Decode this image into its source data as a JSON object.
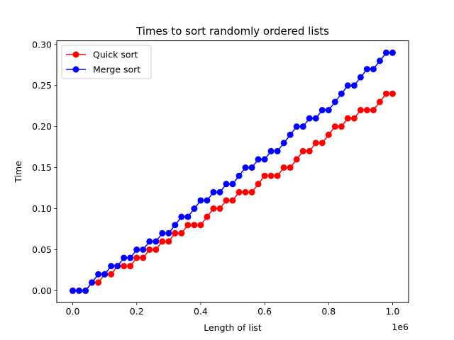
{
  "chart_data": {
    "type": "line",
    "title": "Times to sort randomly ordered lists",
    "xlabel": "Length of list",
    "ylabel": "Time",
    "x_offset_text": "1e6",
    "xlim": [
      -0.05,
      1.05
    ],
    "ylim": [
      -0.0145,
      0.3045
    ],
    "x_scale": 1000000,
    "x_ticks": [
      0.0,
      0.2,
      0.4,
      0.6,
      0.8,
      1.0
    ],
    "x_tick_labels": [
      "0.0",
      "0.2",
      "0.4",
      "0.6",
      "0.8",
      "1.0"
    ],
    "y_ticks": [
      0.0,
      0.05,
      0.1,
      0.15,
      0.2,
      0.25,
      0.3
    ],
    "y_tick_labels": [
      "0.00",
      "0.05",
      "0.10",
      "0.15",
      "0.20",
      "0.25",
      "0.30"
    ],
    "grid": false,
    "legend_position": "upper-left",
    "x": [
      0,
      20000,
      40000,
      60000,
      80000,
      100000,
      120000,
      140000,
      160000,
      180000,
      200000,
      220000,
      240000,
      260000,
      280000,
      300000,
      320000,
      340000,
      360000,
      380000,
      400000,
      420000,
      440000,
      460000,
      480000,
      500000,
      520000,
      540000,
      560000,
      580000,
      600000,
      620000,
      640000,
      660000,
      680000,
      700000,
      720000,
      740000,
      760000,
      780000,
      800000,
      820000,
      840000,
      860000,
      880000,
      900000,
      920000,
      940000,
      960000,
      980000,
      1000000
    ],
    "series": [
      {
        "name": "Quick sort",
        "color": "#ff0000",
        "values": [
          0.0,
          0.0,
          0.0,
          0.01,
          0.01,
          0.02,
          0.02,
          0.03,
          0.03,
          0.03,
          0.04,
          0.04,
          0.05,
          0.05,
          0.06,
          0.06,
          0.07,
          0.07,
          0.08,
          0.08,
          0.08,
          0.09,
          0.1,
          0.1,
          0.11,
          0.11,
          0.12,
          0.12,
          0.12,
          0.13,
          0.14,
          0.14,
          0.14,
          0.15,
          0.15,
          0.16,
          0.17,
          0.17,
          0.18,
          0.18,
          0.19,
          0.2,
          0.2,
          0.21,
          0.21,
          0.22,
          0.22,
          0.22,
          0.23,
          0.24,
          0.24
        ]
      },
      {
        "name": "Merge sort",
        "color": "#0000ff",
        "values": [
          0.0,
          0.0,
          0.0,
          0.01,
          0.02,
          0.02,
          0.03,
          0.03,
          0.04,
          0.04,
          0.05,
          0.05,
          0.06,
          0.06,
          0.07,
          0.07,
          0.08,
          0.09,
          0.09,
          0.1,
          0.11,
          0.11,
          0.12,
          0.12,
          0.13,
          0.13,
          0.14,
          0.15,
          0.15,
          0.16,
          0.16,
          0.17,
          0.17,
          0.18,
          0.19,
          0.2,
          0.2,
          0.21,
          0.21,
          0.22,
          0.22,
          0.23,
          0.24,
          0.25,
          0.25,
          0.26,
          0.27,
          0.27,
          0.28,
          0.29,
          0.29
        ]
      }
    ]
  }
}
